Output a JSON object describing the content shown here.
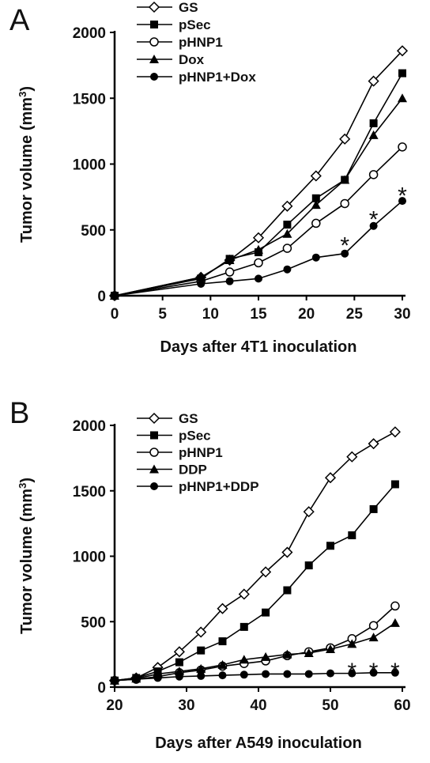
{
  "chart_data": [
    {
      "type": "line",
      "panel_label": "A",
      "xlabel": "Days after 4T1 inoculation",
      "ylabel": "Tumor volume (mm",
      "ylabel_sup": "3",
      "ylabel_end": ")",
      "xlim": [
        0,
        30
      ],
      "ylim": [
        0,
        2000
      ],
      "xticks": [
        0,
        5,
        10,
        15,
        20,
        25,
        30
      ],
      "yticks": [
        0,
        500,
        1000,
        1500,
        2000
      ],
      "legend_position": "top-left",
      "series": [
        {
          "name": "GS",
          "marker": "open-diamond",
          "x": [
            0,
            9,
            12,
            15,
            18,
            21,
            24,
            27,
            30
          ],
          "y": [
            0,
            140,
            270,
            440,
            680,
            910,
            1190,
            1630,
            1860
          ]
        },
        {
          "name": "pSec",
          "marker": "filled-square",
          "x": [
            0,
            9,
            12,
            15,
            18,
            21,
            24,
            27,
            30
          ],
          "y": [
            0,
            130,
            280,
            330,
            540,
            740,
            880,
            1310,
            1690
          ]
        },
        {
          "name": "pHNP1",
          "marker": "open-circle",
          "x": [
            0,
            9,
            12,
            15,
            18,
            21,
            24,
            27,
            30
          ],
          "y": [
            0,
            110,
            180,
            250,
            360,
            550,
            700,
            920,
            1130
          ]
        },
        {
          "name": "Dox",
          "marker": "filled-triangle",
          "x": [
            0,
            9,
            12,
            15,
            18,
            21,
            24,
            27,
            30
          ],
          "y": [
            0,
            140,
            270,
            350,
            470,
            690,
            880,
            1220,
            1500
          ]
        },
        {
          "name": "pHNP1+Dox",
          "marker": "filled-circle",
          "x": [
            0,
            9,
            12,
            15,
            18,
            21,
            24,
            27,
            30
          ],
          "y": [
            0,
            90,
            110,
            130,
            200,
            290,
            320,
            530,
            720
          ]
        }
      ],
      "annotations": [
        {
          "text": "*",
          "x": 24,
          "y": 440
        },
        {
          "text": "*",
          "x": 27,
          "y": 640
        },
        {
          "text": "*",
          "x": 30,
          "y": 820
        }
      ]
    },
    {
      "type": "line",
      "panel_label": "B",
      "xlabel": "Days after A549 inoculation",
      "ylabel": "Tumor volume (mm",
      "ylabel_sup": "3",
      "ylabel_end": ")",
      "xlim": [
        20,
        60
      ],
      "ylim": [
        0,
        2000
      ],
      "xticks": [
        20,
        30,
        40,
        50,
        60
      ],
      "yticks": [
        0,
        500,
        1000,
        1500,
        2000
      ],
      "legend_position": "top-left",
      "series": [
        {
          "name": "GS",
          "marker": "open-diamond",
          "x": [
            20,
            23,
            26,
            29,
            32,
            35,
            38,
            41,
            44,
            47,
            50,
            53,
            56,
            59
          ],
          "y": [
            50,
            70,
            150,
            270,
            420,
            600,
            710,
            880,
            1030,
            1340,
            1600,
            1760,
            1860,
            1950
          ]
        },
        {
          "name": "pSec",
          "marker": "filled-square",
          "x": [
            20,
            23,
            26,
            29,
            32,
            35,
            38,
            41,
            44,
            47,
            50,
            53,
            56,
            59
          ],
          "y": [
            50,
            70,
            120,
            190,
            280,
            350,
            460,
            570,
            740,
            930,
            1080,
            1160,
            1360,
            1550
          ]
        },
        {
          "name": "pHNP1",
          "marker": "open-circle",
          "x": [
            20,
            23,
            26,
            29,
            32,
            35,
            38,
            41,
            44,
            47,
            50,
            53,
            56,
            59
          ],
          "y": [
            50,
            60,
            80,
            110,
            130,
            160,
            180,
            200,
            240,
            270,
            300,
            370,
            470,
            620
          ]
        },
        {
          "name": "DDP",
          "marker": "filled-triangle",
          "x": [
            20,
            23,
            26,
            29,
            32,
            35,
            38,
            41,
            44,
            47,
            50,
            53,
            56,
            59
          ],
          "y": [
            50,
            65,
            100,
            120,
            140,
            170,
            210,
            230,
            250,
            260,
            290,
            330,
            380,
            490
          ]
        },
        {
          "name": "pHNP1+DDP",
          "marker": "filled-circle",
          "x": [
            20,
            23,
            26,
            29,
            32,
            35,
            38,
            41,
            44,
            47,
            50,
            53,
            56,
            59
          ],
          "y": [
            50,
            60,
            70,
            80,
            85,
            90,
            95,
            100,
            100,
            100,
            105,
            105,
            110,
            110
          ]
        }
      ],
      "annotations": [
        {
          "text": "*",
          "x": 53,
          "y": 180
        },
        {
          "text": "*",
          "x": 56,
          "y": 180
        },
        {
          "text": "*",
          "x": 59,
          "y": 180
        }
      ]
    }
  ]
}
